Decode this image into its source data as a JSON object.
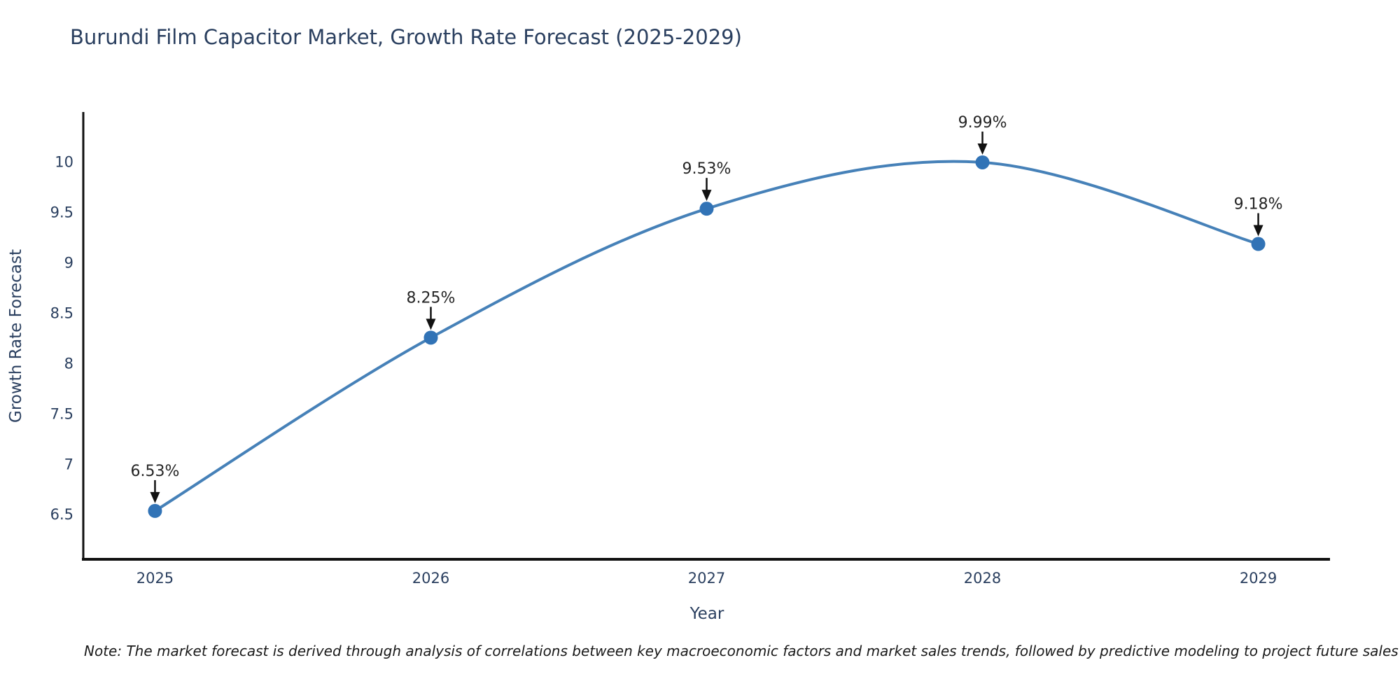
{
  "title": "Burundi Film Capacitor Market, Growth Rate Forecast (2025-2029)",
  "note": "Note: The market forecast is derived through analysis of correlations between key macroeconomic factors and market sales trends, followed by predictive modeling to project future sales",
  "chart_data": {
    "type": "line",
    "title": "Burundi Film Capacitor Market, Growth Rate Forecast (2025-2029)",
    "xlabel": "Year",
    "ylabel": "Growth Rate Forecast",
    "x": [
      2025,
      2026,
      2027,
      2028,
      2029
    ],
    "x_tick_labels": [
      "2025",
      "2026",
      "2027",
      "2028",
      "2029"
    ],
    "series": [
      {
        "name": "Growth Rate Forecast",
        "values": [
          6.53,
          8.25,
          9.53,
          9.99,
          9.18
        ]
      }
    ],
    "point_labels": [
      "6.53%",
      "8.25%",
      "9.53%",
      "9.99%",
      "9.18%"
    ],
    "y_ticks": [
      10,
      9.5,
      9,
      8.5,
      8,
      7.5,
      7,
      6.5
    ],
    "ylim": [
      6.05,
      10.49
    ],
    "xlim": [
      2024.74,
      2029.26
    ],
    "grid": false,
    "legend_position": "none",
    "line_shape": "spline",
    "colors": {
      "line": "#4681b8",
      "marker": "#3173b6",
      "axis_line": "#111111",
      "tick_text": "#2a3f5f",
      "title_text": "#2a3f5f",
      "annotation_text": "#252525",
      "arrow": "#111111",
      "background": "#ffffff"
    }
  }
}
